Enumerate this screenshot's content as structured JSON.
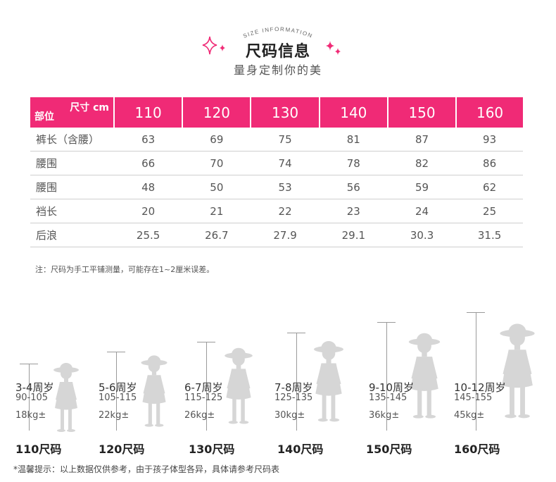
{
  "header": {
    "arc_text": "SIZE INFORMATION",
    "title": "尺码信息",
    "subtitle": "量身定制你的美"
  },
  "colors": {
    "accent": "#f02a76",
    "silhouette": "#d4d4d4"
  },
  "table": {
    "corner_top": "尺寸 cm",
    "corner_bottom": "部位",
    "sizes": [
      "110",
      "120",
      "130",
      "140",
      "150",
      "160"
    ],
    "rows": [
      {
        "label": "裤长（含腰）",
        "values": [
          "63",
          "69",
          "75",
          "81",
          "87",
          "93"
        ]
      },
      {
        "label": "腰围",
        "values": [
          "66",
          "70",
          "74",
          "78",
          "82",
          "86"
        ]
      },
      {
        "label": "腰围",
        "values": [
          "48",
          "50",
          "53",
          "56",
          "59",
          "62"
        ]
      },
      {
        "label": "裆长",
        "values": [
          "20",
          "21",
          "22",
          "23",
          "24",
          "25"
        ]
      },
      {
        "label": "后浪",
        "values": [
          "25.5",
          "26.7",
          "27.9",
          "29.1",
          "30.3",
          "31.5"
        ]
      }
    ]
  },
  "note": "注：尺码为手工平铺测量，可能存在1~2厘米误差。",
  "figures": [
    {
      "age": "3-4周岁",
      "height": "90-105",
      "weight": "18kg±",
      "size": "110尺码"
    },
    {
      "age": "5-6周岁",
      "height": "105-115",
      "weight": "22kg±",
      "size": "120尺码"
    },
    {
      "age": "6-7周岁",
      "height": "115-125",
      "weight": "26kg±",
      "size": "130尺码"
    },
    {
      "age": "7-8周岁",
      "height": "125-135",
      "weight": "30kg±",
      "size": "140尺码"
    },
    {
      "age": "9-10周岁",
      "height": "135-145",
      "weight": "36kg±",
      "size": "150尺码"
    },
    {
      "age": "10-12周岁",
      "height": "145-155",
      "weight": "45kg±",
      "size": "160尺码"
    }
  ],
  "footer": "*温馨提示：以上数据仅供参考，由于孩子体型各异，具体请参考尺码表"
}
